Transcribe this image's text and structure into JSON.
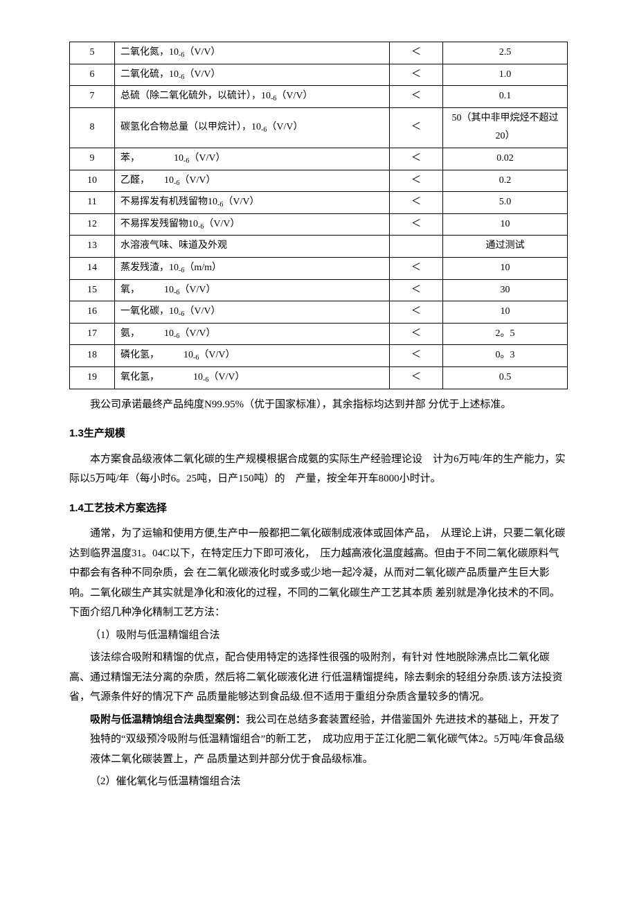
{
  "table": {
    "rows": [
      {
        "idx": "5",
        "param": "二氧化氮，10₋₆（V/V）",
        "cmp": "＜",
        "val": "2.5"
      },
      {
        "idx": "6",
        "param": "二氧化硫，10₋₆（V/V）",
        "cmp": "＜",
        "val": "1.0"
      },
      {
        "idx": "7",
        "param": "总硫（除二氧化硫外，以硫计），10₋₆（V/V）",
        "cmp": "＜",
        "val": "0.1"
      },
      {
        "idx": "8",
        "param": "碳氢化合物总量（以甲烷计），10₋₆（V/V）",
        "cmp": "＜",
        "val": "50（其中非甲烷烃不超过20）"
      },
      {
        "idx": "9",
        "param": "苯，　　　　10₋₆（V/V）",
        "cmp": "＜",
        "val": "0.02"
      },
      {
        "idx": "10",
        "param": "乙醛，　　10₋₆（V/V）",
        "cmp": "＜",
        "val": "0.2"
      },
      {
        "idx": "11",
        "param": "不易挥发有机残留物10₋₆（V/V）",
        "cmp": "＜",
        "val": "5.0"
      },
      {
        "idx": "12",
        "param": "不易挥发残留物10₋₆（V/V）",
        "cmp": "＜",
        "val": "10"
      },
      {
        "idx": "13",
        "param": "水溶液气味、味道及外观",
        "cmp": "",
        "val": "通过测试"
      },
      {
        "idx": "14",
        "param": "蒸发残渣，10₋₆（m/m）",
        "cmp": "＜",
        "val": "10"
      },
      {
        "idx": "15",
        "param": "氧，　　　10₋₆（V/V）",
        "cmp": "＜",
        "val": "30"
      },
      {
        "idx": "16",
        "param": "一氧化碳，10₋₆（V/V）",
        "cmp": "＜",
        "val": "10"
      },
      {
        "idx": "17",
        "param": "氨，　　　10₋₆（V/V）",
        "cmp": "＜",
        "val": "2。5"
      },
      {
        "idx": "18",
        "param": "磷化氢，　　　10₋₆（V/V）",
        "cmp": "＜",
        "val": "0。3"
      },
      {
        "idx": "19",
        "param": "氧化氢，　　　　10₋₆（V/V）",
        "cmp": "＜",
        "val": "0.5"
      }
    ]
  },
  "after_table": "我公司承诺最终产品纯度N99.95%（优于国家标准），其余指标均达到并部  分优于上述标准。",
  "section_1_3": {
    "title": "1.3生产规模",
    "p1": "本方案食品级液体二氧化碳的生产规模根据合成氨的实际生产经验理论设　计为6万吨/年的生产能力，实际以5万吨/年（每小时6。25吨，日产150吨）的　产量，按全年开车8000小时计。"
  },
  "section_1_4": {
    "title": "1.4工艺技术方案选择",
    "p1": "通常，为了运输和使用方便,生产中一般都把二氧化碳制成液体或固体产品，　从理论上讲，只要二氧化碳达到临界温度31。04C以下，在特定压力下即可液化，　压力越高液化温度越高。但由于不同二氧化碳原料气中都会有各种不同杂质，会  在二氧化碳液化时或多或少地一起冷凝，从而对二氧化碳产品质量产生巨大影  响。二氧化碳生产其实就是净化和液化的过程，不同的二氧化碳生产工艺其本质  差别就是净化技术的不同。下面介绍几种净化精制工艺方法：",
    "m1_title": "（1）吸附与低温精馏组合法",
    "m1_body": "该法综合吸附和精馏的优点，配合使用特定的选择性很强的吸附剂，有针对  性地脱除沸点比二氧化碳高、通过精馏无法分离的杂质，然后将二氧化碳液化进  行低温精馏提纯，除去剩余的轻组分杂质.该方法投资省，气源条件好的情况下产  品质量能够达到食品级.但不适用于重组分杂质含量较多的情况。",
    "m1_case_label": "吸附与低温精饷组合法典型案例：",
    "m1_case_body": "我公司在总结多套装置经验，并借鉴国外  先进技术的基础上，开发了独特的“双级预冷吸附与低温精馏组合”的新工艺，　成功应用于芷江化肥二氧化碳气体2。5万吨/年食品级液体二氧化碳装置上，产  品质量达到并部分优于食品级标准。",
    "m2_title": "（2）催化氧化与低温精馏组合法"
  }
}
